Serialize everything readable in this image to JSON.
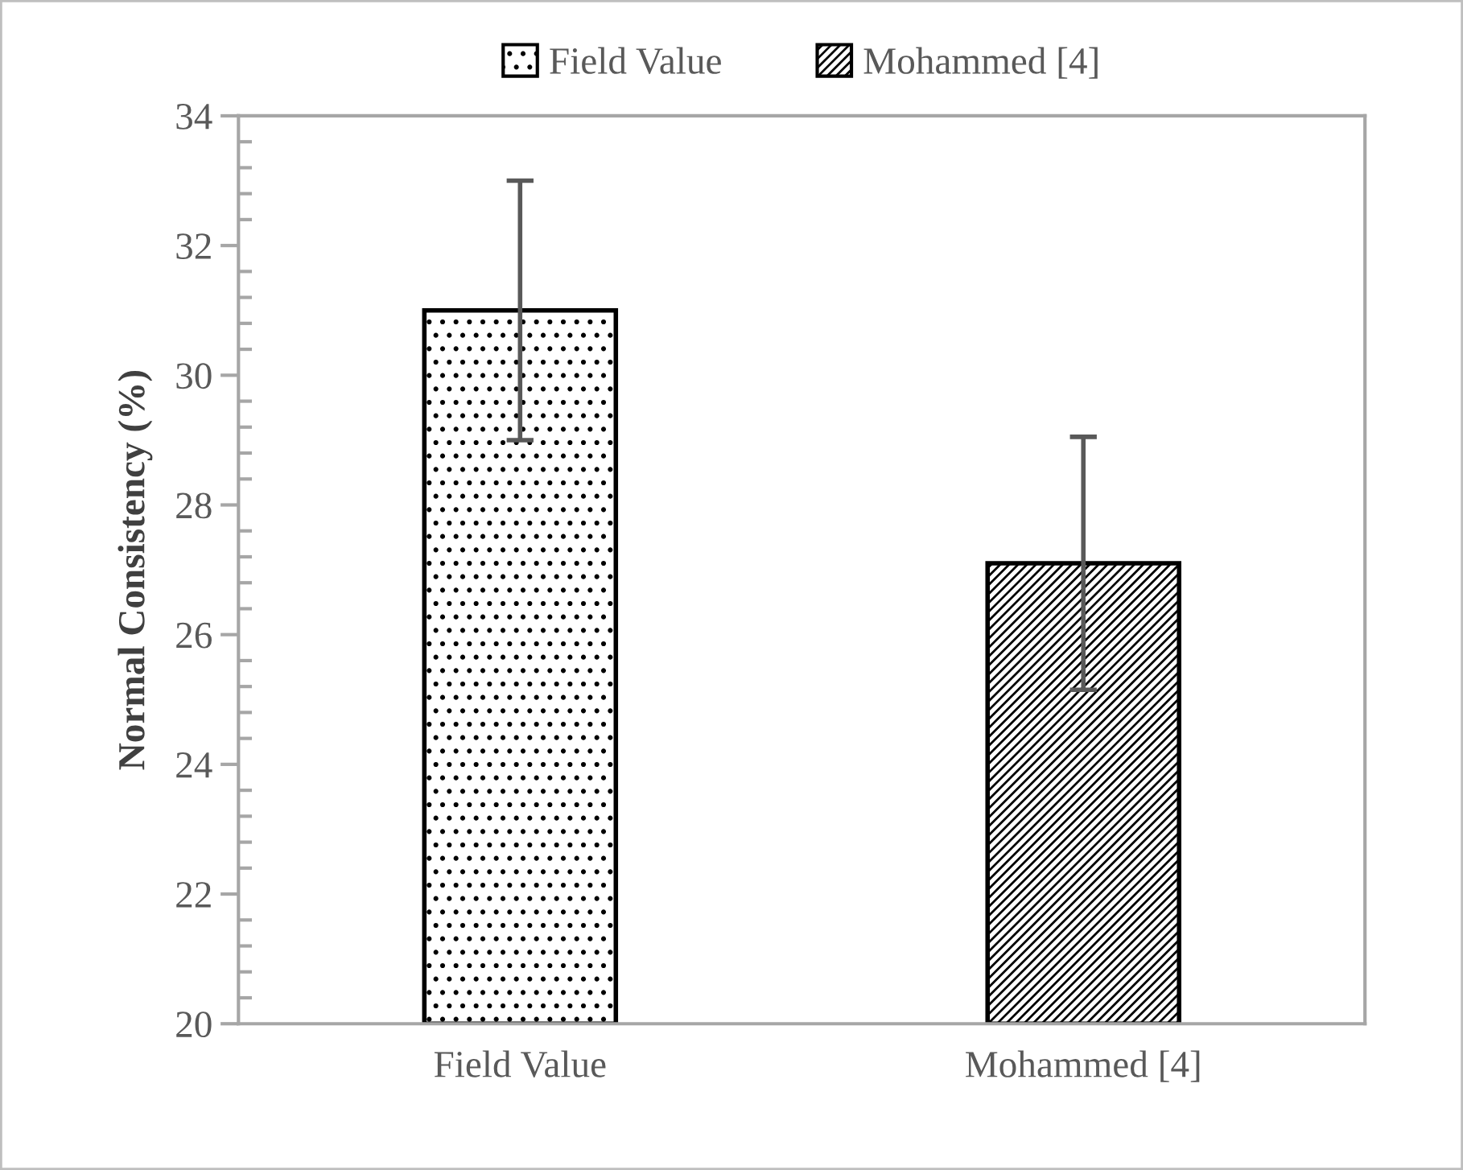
{
  "chart_data": {
    "type": "bar",
    "ylabel": "Normal Consistency (%)",
    "categories": [
      "Field Value",
      "Mohammed [4]"
    ],
    "series": [
      {
        "name": "Field Value",
        "color": "#000000",
        "values": [
          31,
          null
        ],
        "errors": [
          2,
          null
        ]
      },
      {
        "name": "Mohammed [4]",
        "color": "#000000",
        "values": [
          null,
          27.1
        ],
        "errors": [
          null,
          1.95
        ]
      }
    ],
    "ylim": [
      20,
      34
    ],
    "yticks": [
      20,
      22,
      24,
      26,
      28,
      30,
      32,
      34
    ],
    "grid": false,
    "legend": "top"
  }
}
